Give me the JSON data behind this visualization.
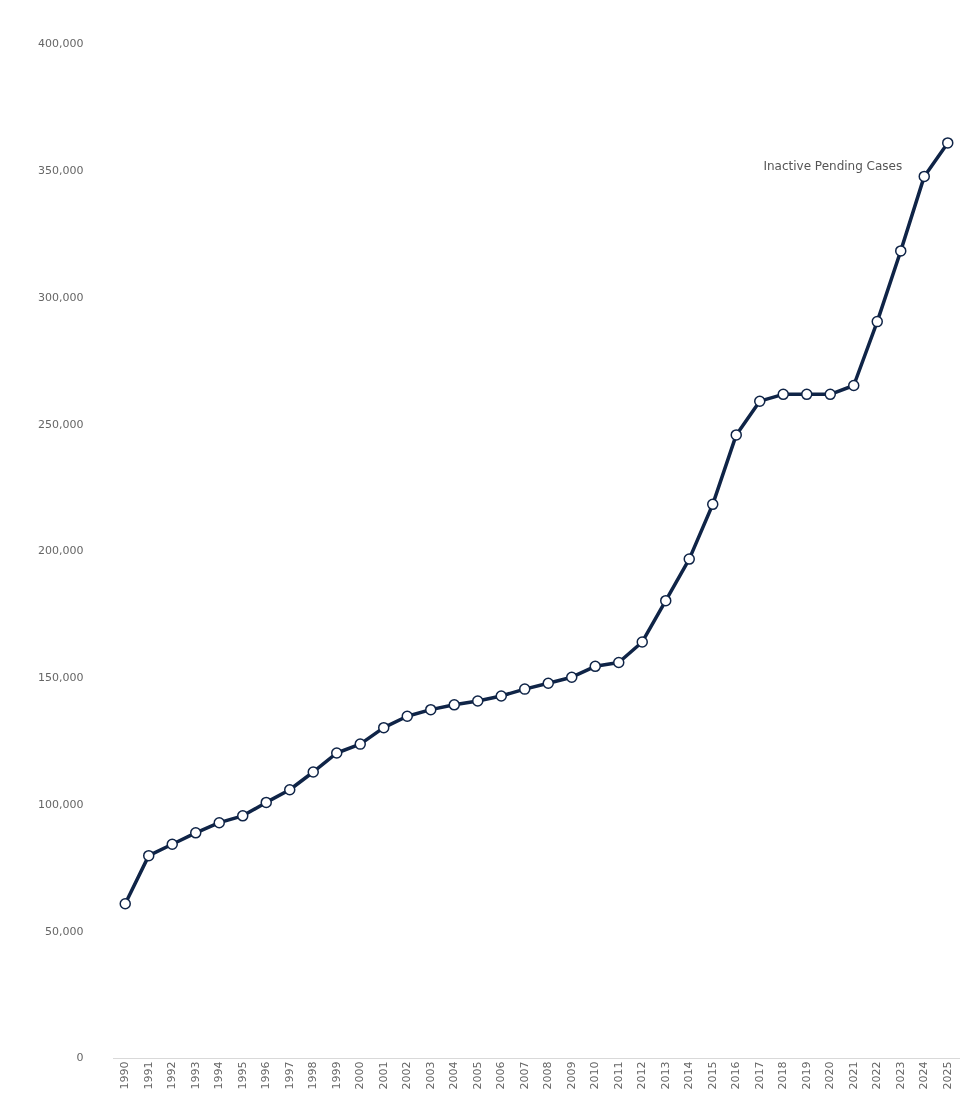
{
  "chart_data": {
    "type": "line",
    "categories": [
      "1990",
      "1991",
      "1992",
      "1993",
      "1994",
      "1995",
      "1996",
      "1997",
      "1998",
      "1999",
      "2000",
      "2001",
      "2002",
      "2003",
      "2004",
      "2005",
      "2006",
      "2007",
      "2008",
      "2009",
      "2010",
      "2011",
      "2012",
      "2013",
      "2014",
      "2015",
      "2016",
      "2017",
      "2018",
      "2019",
      "2020",
      "2021",
      "2022",
      "2023",
      "2024",
      "2025"
    ],
    "series": [
      {
        "name": "Inactive Pending Cases",
        "color": "#0f2447",
        "values": [
          61000,
          80000,
          84500,
          89000,
          93000,
          95700,
          101000,
          106000,
          113000,
          120500,
          124000,
          130500,
          135000,
          137600,
          139500,
          141000,
          143000,
          145700,
          148000,
          150400,
          154700,
          156200,
          164300,
          180600,
          197000,
          218600,
          246000,
          259300,
          262000,
          262000,
          262000,
          265500,
          290700,
          318600,
          348000,
          361200
        ]
      }
    ],
    "ylim": [
      0,
      400000
    ],
    "yticks": [
      {
        "value": 0,
        "label": "0"
      },
      {
        "value": 50000,
        "label": "50,000"
      },
      {
        "value": 100000,
        "label": "100,000"
      },
      {
        "value": 150000,
        "label": "150,000"
      },
      {
        "value": 200000,
        "label": "200,000"
      },
      {
        "value": 250000,
        "label": "250,000"
      },
      {
        "value": 300000,
        "label": "300,000"
      },
      {
        "value": 350000,
        "label": "350,000"
      },
      {
        "value": 400000,
        "label": "400,000"
      }
    ],
    "grid": false,
    "legend": false,
    "marker": "circle",
    "line_style": "solid"
  }
}
